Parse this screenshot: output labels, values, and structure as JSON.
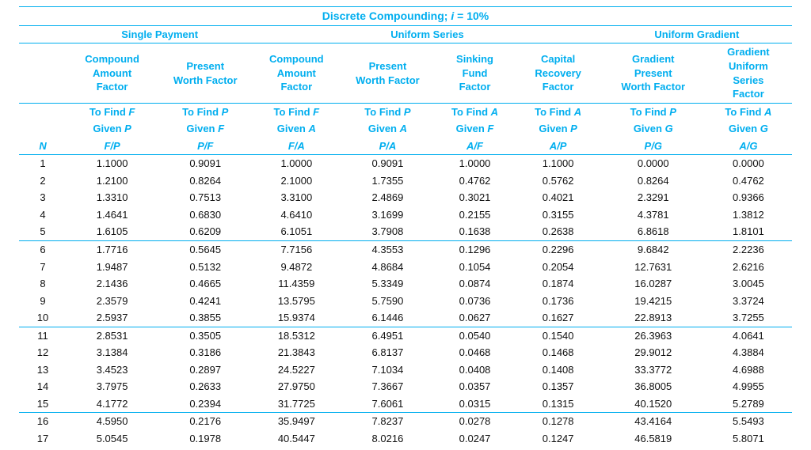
{
  "colors": {
    "accent": "#00aeef",
    "ruleWidth": "1px",
    "text": "#000000",
    "background": "#ffffff"
  },
  "typography": {
    "fontFamily": "Arial, Helvetica, sans-serif",
    "headerFontSize": 13,
    "titleFontSize": 14,
    "bodyFontSize": 13
  },
  "title": {
    "prefix": "Discrete Compounding; ",
    "i": "i",
    "eq": " = 10%"
  },
  "groups": {
    "single": "Single Payment",
    "uniform": "Uniform Series",
    "gradient": "Uniform Gradient"
  },
  "factorNames": {
    "fp": [
      "Compound",
      "Amount",
      "Factor"
    ],
    "pf": [
      "Present",
      "Worth Factor"
    ],
    "fa": [
      "Compound",
      "Amount",
      "Factor"
    ],
    "pa": [
      "Present",
      "Worth Factor"
    ],
    "af": [
      "Sinking",
      "Fund",
      "Factor"
    ],
    "ap": [
      "Capital",
      "Recovery",
      "Factor"
    ],
    "pg": [
      "Gradient",
      "Present",
      "Worth Factor"
    ],
    "ag": [
      "Gradient",
      "Uniform",
      "Series",
      "Factor"
    ]
  },
  "subHeads": {
    "n": "N",
    "fp": {
      "l1p": "To Find ",
      "l1v": "F",
      "l2p": "Given ",
      "l2v": "P",
      "l3": "F/P"
    },
    "pf": {
      "l1p": "To Find ",
      "l1v": "P",
      "l2p": "Given ",
      "l2v": "F",
      "l3": "P/F"
    },
    "fa": {
      "l1p": "To Find ",
      "l1v": "F",
      "l2p": "Given ",
      "l2v": "A",
      "l3": "F/A"
    },
    "pa": {
      "l1p": "To Find ",
      "l1v": "P",
      "l2p": "Given ",
      "l2v": "A",
      "l3": "P/A"
    },
    "af": {
      "l1p": "To Find ",
      "l1v": "A",
      "l2p": "Given ",
      "l2v": "F",
      "l3": "A/F"
    },
    "ap": {
      "l1p": "To Find ",
      "l1v": "A",
      "l2p": "Given ",
      "l2v": "P",
      "l3": "A/P"
    },
    "pg": {
      "l1p": "To Find ",
      "l1v": "P",
      "l2p": "Given ",
      "l2v": "G",
      "l3": "P/G"
    },
    "ag": {
      "l1p": "To Find ",
      "l1v": "A",
      "l2p": "Given ",
      "l2v": "G",
      "l3": "A/G"
    }
  },
  "columns": [
    "N",
    "F/P",
    "P/F",
    "F/A",
    "P/A",
    "A/F",
    "A/P",
    "P/G",
    "A/G"
  ],
  "rowBlocks": [
    [
      [
        1,
        "1.1000",
        "0.9091",
        "1.0000",
        "0.9091",
        "1.0000",
        "1.1000",
        "0.0000",
        "0.0000"
      ],
      [
        2,
        "1.2100",
        "0.8264",
        "2.1000",
        "1.7355",
        "0.4762",
        "0.5762",
        "0.8264",
        "0.4762"
      ],
      [
        3,
        "1.3310",
        "0.7513",
        "3.3100",
        "2.4869",
        "0.3021",
        "0.4021",
        "2.3291",
        "0.9366"
      ],
      [
        4,
        "1.4641",
        "0.6830",
        "4.6410",
        "3.1699",
        "0.2155",
        "0.3155",
        "4.3781",
        "1.3812"
      ],
      [
        5,
        "1.6105",
        "0.6209",
        "6.1051",
        "3.7908",
        "0.1638",
        "0.2638",
        "6.8618",
        "1.8101"
      ]
    ],
    [
      [
        6,
        "1.7716",
        "0.5645",
        "7.7156",
        "4.3553",
        "0.1296",
        "0.2296",
        "9.6842",
        "2.2236"
      ],
      [
        7,
        "1.9487",
        "0.5132",
        "9.4872",
        "4.8684",
        "0.1054",
        "0.2054",
        "12.7631",
        "2.6216"
      ],
      [
        8,
        "2.1436",
        "0.4665",
        "11.4359",
        "5.3349",
        "0.0874",
        "0.1874",
        "16.0287",
        "3.0045"
      ],
      [
        9,
        "2.3579",
        "0.4241",
        "13.5795",
        "5.7590",
        "0.0736",
        "0.1736",
        "19.4215",
        "3.3724"
      ],
      [
        10,
        "2.5937",
        "0.3855",
        "15.9374",
        "6.1446",
        "0.0627",
        "0.1627",
        "22.8913",
        "3.7255"
      ]
    ],
    [
      [
        11,
        "2.8531",
        "0.3505",
        "18.5312",
        "6.4951",
        "0.0540",
        "0.1540",
        "26.3963",
        "4.0641"
      ],
      [
        12,
        "3.1384",
        "0.3186",
        "21.3843",
        "6.8137",
        "0.0468",
        "0.1468",
        "29.9012",
        "4.3884"
      ],
      [
        13,
        "3.4523",
        "0.2897",
        "24.5227",
        "7.1034",
        "0.0408",
        "0.1408",
        "33.3772",
        "4.6988"
      ],
      [
        14,
        "3.7975",
        "0.2633",
        "27.9750",
        "7.3667",
        "0.0357",
        "0.1357",
        "36.8005",
        "4.9955"
      ],
      [
        15,
        "4.1772",
        "0.2394",
        "31.7725",
        "7.6061",
        "0.0315",
        "0.1315",
        "40.1520",
        "5.2789"
      ]
    ],
    [
      [
        16,
        "4.5950",
        "0.2176",
        "35.9497",
        "7.8237",
        "0.0278",
        "0.1278",
        "43.4164",
        "5.5493"
      ],
      [
        17,
        "5.0545",
        "0.1978",
        "40.5447",
        "8.0216",
        "0.0247",
        "0.1247",
        "46.5819",
        "5.8071"
      ]
    ]
  ]
}
